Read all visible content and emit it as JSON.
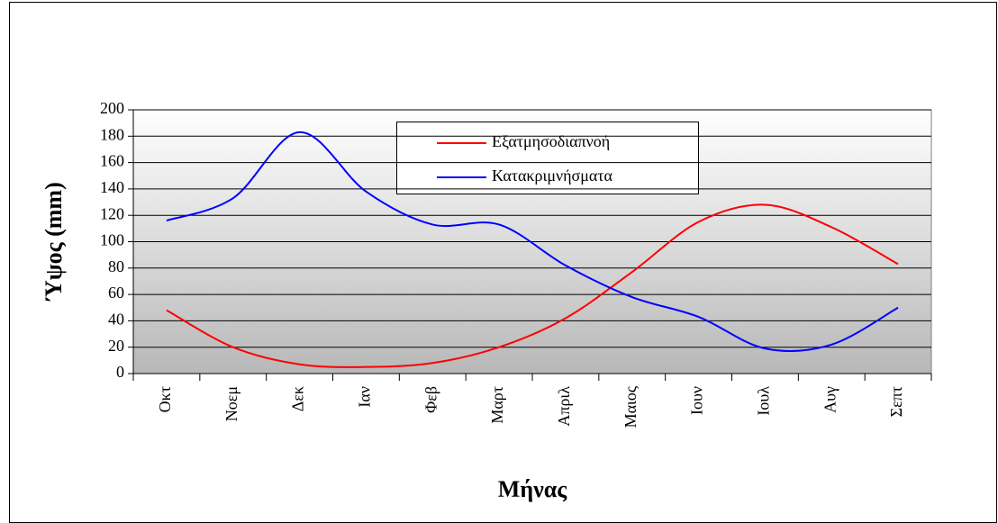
{
  "chart_data": {
    "type": "line",
    "x_label": "Μήνας",
    "y_label": "Ύψος (mm)",
    "categories": [
      "Οκτ",
      "Νοεμ",
      "Δεκ",
      "Ιαν",
      "Φεβ",
      "Μαρτ",
      "Απριλ",
      "Μαιος",
      "Ιουν",
      "Ιουλ",
      "Αυγ",
      "Σεπτ"
    ],
    "series": [
      {
        "name": "Εξατμησοδιαπνοή",
        "color": "#ff0000",
        "values": [
          48,
          20,
          7,
          5,
          8,
          20,
          42,
          77,
          115,
          128,
          111,
          83
        ]
      },
      {
        "name": "Κατακριμνήσματα",
        "color": "#0000ff",
        "values": [
          116,
          133,
          183,
          138,
          113,
          113,
          82,
          58,
          43,
          19,
          22,
          50
        ]
      }
    ],
    "ylim": [
      0,
      200
    ],
    "yticks": [
      0,
      20,
      40,
      60,
      80,
      100,
      120,
      140,
      160,
      180,
      200
    ],
    "grid": true,
    "smooth": true
  }
}
